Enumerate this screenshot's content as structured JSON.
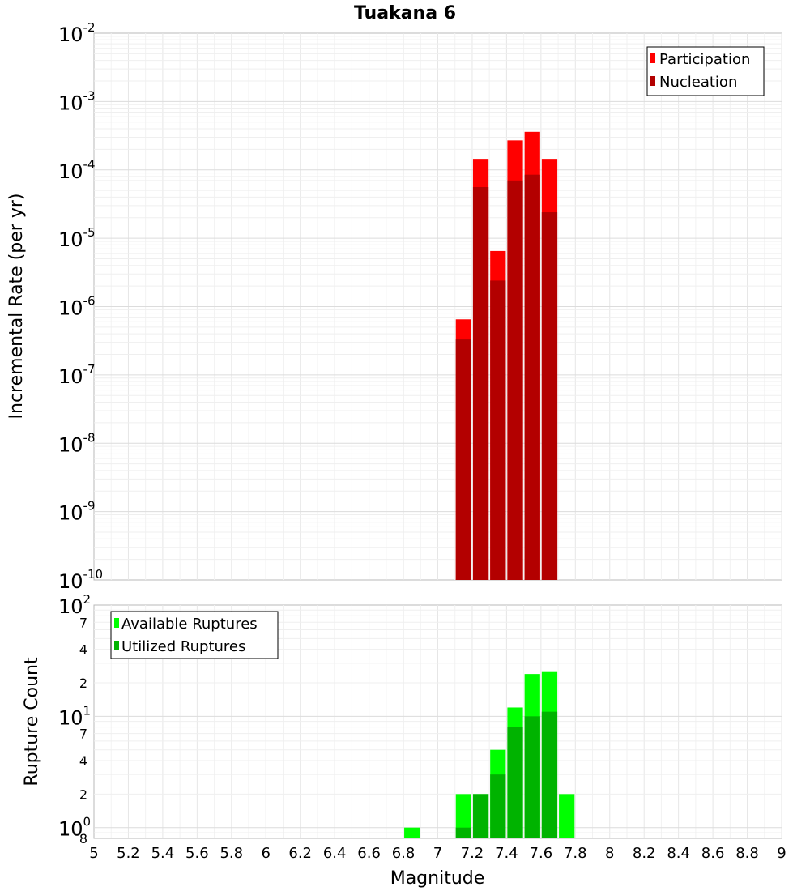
{
  "chart_data": [
    {
      "type": "bar",
      "title": "Tuakana 6",
      "xlabel": "Magnitude",
      "ylabel": "Incremental Rate (per yr)",
      "y_scale": "log",
      "ylim": [
        1e-10,
        0.01
      ],
      "xlim": [
        5,
        9
      ],
      "bin_width": 0.1,
      "grid": true,
      "legend_position": "top-right",
      "y_tick_exponents": [
        "-2",
        "-3",
        "-4",
        "-5",
        "-6",
        "-7",
        "-8",
        "-9",
        "-10"
      ],
      "x": [
        7.15,
        7.25,
        7.35,
        7.45,
        7.55,
        7.65
      ],
      "series": [
        {
          "name": "Participation",
          "color": "#ff0000",
          "values": [
            6.5e-07,
            0.000145,
            6.5e-06,
            0.00027,
            0.00036,
            0.000145
          ]
        },
        {
          "name": "Nucleation",
          "color": "#b30000",
          "values": [
            3.3e-07,
            5.6e-05,
            2.4e-06,
            7e-05,
            8.5e-05,
            2.4e-05
          ]
        }
      ]
    },
    {
      "type": "bar",
      "xlabel": "Magnitude",
      "ylabel": "Rupture Count",
      "y_scale": "log",
      "ylim": [
        0.8,
        100
      ],
      "xlim": [
        5,
        9
      ],
      "bin_width": 0.1,
      "grid": true,
      "legend_position": "top-left",
      "x_ticks": [
        "5",
        "5.2",
        "5.4",
        "5.6",
        "5.8",
        "6",
        "6.2",
        "6.4",
        "6.6",
        "6.8",
        "7",
        "7.2",
        "7.4",
        "7.6",
        "7.8",
        "8",
        "8.2",
        "8.4",
        "8.6",
        "8.8",
        "9"
      ],
      "y_ticks": [
        {
          "value": 100,
          "base": "10",
          "exp": "2"
        },
        {
          "value": 70,
          "minor": "7"
        },
        {
          "value": 40,
          "minor": "4"
        },
        {
          "value": 20,
          "minor": "2"
        },
        {
          "value": 10,
          "base": "10",
          "exp": "1"
        },
        {
          "value": 7,
          "minor": "7"
        },
        {
          "value": 4,
          "minor": "4"
        },
        {
          "value": 2,
          "minor": "2"
        },
        {
          "value": 1,
          "base": "10",
          "exp": "0"
        },
        {
          "value": 0.8,
          "minor": "8"
        }
      ],
      "x": [
        6.85,
        7.15,
        7.25,
        7.35,
        7.45,
        7.55,
        7.65,
        7.75
      ],
      "series": [
        {
          "name": "Available Ruptures",
          "color": "#00ff00",
          "values": [
            1,
            2,
            2,
            5,
            12,
            24,
            25,
            2
          ]
        },
        {
          "name": "Utilized Ruptures",
          "color": "#00b300",
          "values": [
            0,
            1,
            2,
            3,
            8,
            10,
            11,
            0
          ]
        }
      ]
    }
  ]
}
